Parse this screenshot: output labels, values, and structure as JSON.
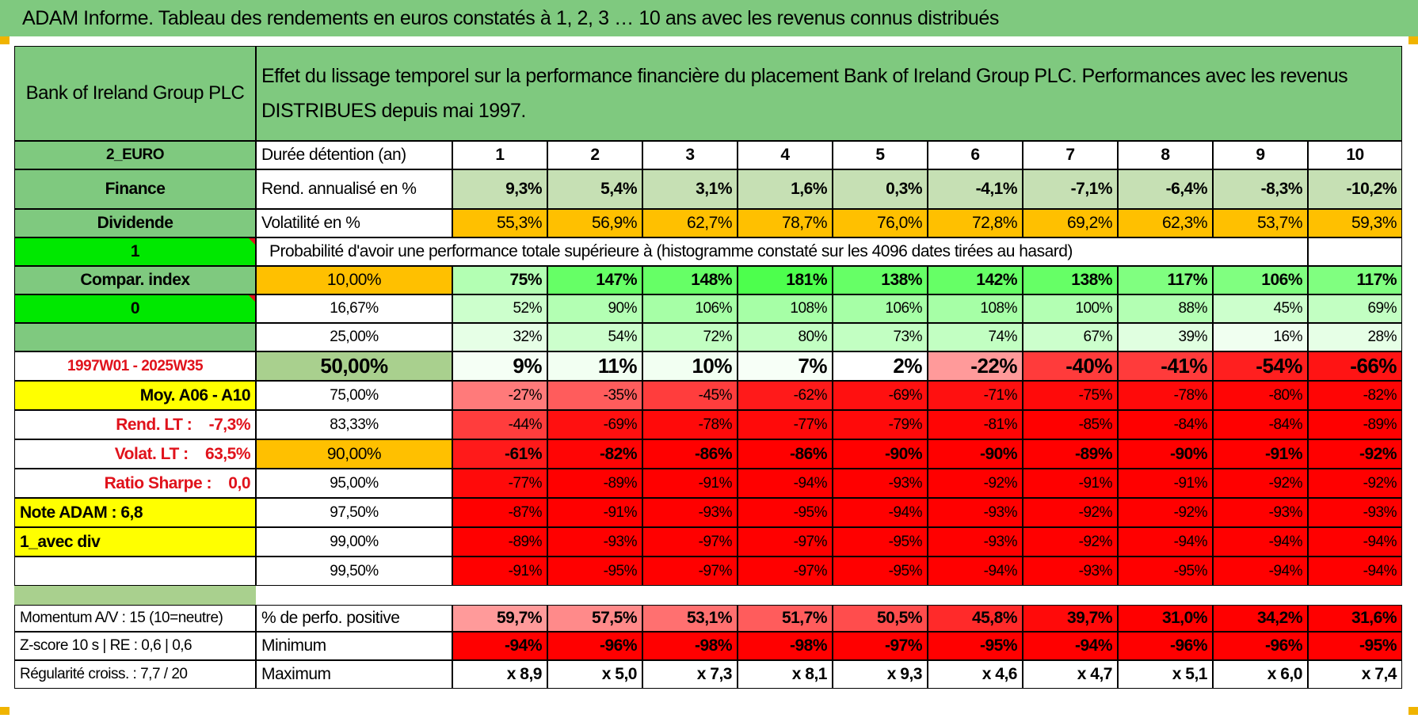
{
  "title": "ADAM Informe. Tableau des rendements en euros constatés à 1, 2, 3 … 10 ans avec les revenus connus distribués",
  "header": {
    "company": "Bank of Ireland Group PLC",
    "description": "Effet du lissage temporel sur la performance financière du placement Bank of Ireland Group PLC. Performances avec les revenus DISTRIBUES depuis mai 1997."
  },
  "left_panel": {
    "currency": "2_EURO",
    "sector": "Finance",
    "type": "Dividende",
    "value_1": "1",
    "compar_index": "Compar. index",
    "value_0": "0",
    "period": "1997W01 - 2025W35",
    "moy_label": "Moy. A06 - A10",
    "rend_lt": "Rend. LT :    -7,3%",
    "volat_lt": "Volat. LT :    63,5%",
    "ratio_sharpe": "Ratio Sharpe :    0,0",
    "note_adam": "Note ADAM : 6,8",
    "avec_div": "1_avec div"
  },
  "row_labels": {
    "duree": "Durée détention (an)",
    "rend": "Rend. annualisé en %",
    "volat": "Volatilité en %",
    "proba": "Probabilité d'avoir une performance totale supérieure à (histogramme constaté sur les 4096 dates tirées au hasard)",
    "positive": "% de perfo. positive",
    "minimum": "Minimum",
    "maximum": "Maximum"
  },
  "years": [
    "1",
    "2",
    "3",
    "4",
    "5",
    "6",
    "7",
    "8",
    "9",
    "10"
  ],
  "rend_values": [
    "9,3%",
    "5,4%",
    "3,1%",
    "1,6%",
    "0,3%",
    "-4,1%",
    "-7,1%",
    "-6,4%",
    "-8,3%",
    "-10,2%"
  ],
  "volat_values": [
    "55,3%",
    "56,9%",
    "62,7%",
    "78,7%",
    "76,0%",
    "72,8%",
    "69,2%",
    "62,3%",
    "53,7%",
    "59,3%"
  ],
  "prob_rows": [
    {
      "p": "10,00%",
      "v": [
        "75%",
        "147%",
        "148%",
        "181%",
        "138%",
        "142%",
        "138%",
        "117%",
        "106%",
        "117%"
      ],
      "bg": [
        "#b3ffb3",
        "#66ff66",
        "#66ff66",
        "#4dff4d",
        "#66ff66",
        "#66ff66",
        "#66ff66",
        "#80ff80",
        "#80ff80",
        "#80ff80"
      ]
    },
    {
      "p": "16,67%",
      "v": [
        "52%",
        "90%",
        "106%",
        "108%",
        "106%",
        "108%",
        "100%",
        "88%",
        "45%",
        "69%"
      ],
      "bg": [
        "#ccffcc",
        "#b3ffb3",
        "#a6ffa6",
        "#a6ffa6",
        "#a6ffa6",
        "#a6ffa6",
        "#b3ffb3",
        "#b3ffb3",
        "#ccffcc",
        "#c2ffc2"
      ]
    },
    {
      "p": "25,00%",
      "v": [
        "32%",
        "54%",
        "72%",
        "80%",
        "73%",
        "74%",
        "67%",
        "39%",
        "16%",
        "28%"
      ],
      "bg": [
        "#e6ffe6",
        "#ccffcc",
        "#c2ffc2",
        "#c2ffc2",
        "#c2ffc2",
        "#c2ffc2",
        "#ccffcc",
        "#e0ffe0",
        "#f0fff0",
        "#e6ffe6"
      ]
    },
    {
      "p": "50,00%",
      "v": [
        "9%",
        "11%",
        "10%",
        "7%",
        "2%",
        "-22%",
        "-40%",
        "-41%",
        "-54%",
        "-66%"
      ],
      "bg": [
        "#f5fff5",
        "#f2fff2",
        "#f2fff2",
        "#f7fff7",
        "#ffffff",
        "#ff9a9a",
        "#ff3b3b",
        "#ff3b3b",
        "#ff1f1f",
        "#ff1414"
      ]
    },
    {
      "p": "75,00%",
      "v": [
        "-27%",
        "-35%",
        "-45%",
        "-62%",
        "-69%",
        "-71%",
        "-75%",
        "-78%",
        "-80%",
        "-82%"
      ],
      "bg": [
        "#ff7a7a",
        "#ff5c5c",
        "#ff3d3d",
        "#ff1a1a",
        "#ff1010",
        "#ff1010",
        "#ff0a0a",
        "#ff0a0a",
        "#ff0505",
        "#ff0505"
      ]
    },
    {
      "p": "83,33%",
      "v": [
        "-44%",
        "-69%",
        "-78%",
        "-77%",
        "-79%",
        "-81%",
        "-85%",
        "-84%",
        "-84%",
        "-89%"
      ],
      "bg": [
        "#ff3d3d",
        "#ff1010",
        "#ff0a0a",
        "#ff0a0a",
        "#ff0a0a",
        "#ff0505",
        "#ff0000",
        "#ff0000",
        "#ff0000",
        "#ff0000"
      ]
    },
    {
      "p": "90,00%",
      "v": [
        "-61%",
        "-82%",
        "-86%",
        "-86%",
        "-90%",
        "-90%",
        "-89%",
        "-90%",
        "-91%",
        "-92%"
      ],
      "bg": [
        "#ff1a1a",
        "#ff0505",
        "#ff0000",
        "#ff0000",
        "#ff0000",
        "#ff0000",
        "#ff0000",
        "#ff0000",
        "#ff0000",
        "#ff0000"
      ]
    },
    {
      "p": "95,00%",
      "v": [
        "-77%",
        "-89%",
        "-91%",
        "-94%",
        "-93%",
        "-92%",
        "-91%",
        "-91%",
        "-92%",
        "-92%"
      ],
      "bg": [
        "#ff0a0a",
        "#ff0000",
        "#ff0000",
        "#ff0000",
        "#ff0000",
        "#ff0000",
        "#ff0000",
        "#ff0000",
        "#ff0000",
        "#ff0000"
      ]
    },
    {
      "p": "97,50%",
      "v": [
        "-87%",
        "-91%",
        "-93%",
        "-95%",
        "-94%",
        "-93%",
        "-92%",
        "-92%",
        "-93%",
        "-93%"
      ],
      "bg": [
        "#ff0000",
        "#ff0000",
        "#ff0000",
        "#ff0000",
        "#ff0000",
        "#ff0000",
        "#ff0000",
        "#ff0000",
        "#ff0000",
        "#ff0000"
      ]
    },
    {
      "p": "99,00%",
      "v": [
        "-89%",
        "-93%",
        "-97%",
        "-97%",
        "-95%",
        "-93%",
        "-92%",
        "-94%",
        "-94%",
        "-94%"
      ],
      "bg": [
        "#ff0000",
        "#ff0000",
        "#ff0000",
        "#ff0000",
        "#ff0000",
        "#ff0000",
        "#ff0000",
        "#ff0000",
        "#ff0000",
        "#ff0000"
      ]
    },
    {
      "p": "99,50%",
      "v": [
        "-91%",
        "-95%",
        "-97%",
        "-97%",
        "-95%",
        "-94%",
        "-93%",
        "-95%",
        "-94%",
        "-94%"
      ],
      "bg": [
        "#ff0000",
        "#ff0000",
        "#ff0000",
        "#ff0000",
        "#ff0000",
        "#ff0000",
        "#ff0000",
        "#ff0000",
        "#ff0000",
        "#ff0000"
      ]
    }
  ],
  "stats": {
    "momentum": "Momentum A/V : 15 (10=neutre)",
    "zscore": "Z-score 10 s | RE : 0,6 | 0,6",
    "regularite": "Régularité croiss. : 7,7 / 20",
    "positive_values": [
      "59,7%",
      "57,5%",
      "53,1%",
      "51,7%",
      "50,5%",
      "45,8%",
      "39,7%",
      "31,0%",
      "34,2%",
      "31,6%"
    ],
    "positive_bg": [
      "#ff9a9a",
      "#ff8a8a",
      "#ff7070",
      "#ff5c5c",
      "#ff4d4d",
      "#ff2a2a",
      "#ff0a0a",
      "#ff0000",
      "#ff0000",
      "#ff0000"
    ],
    "minimum_values": [
      "-94%",
      "-96%",
      "-98%",
      "-98%",
      "-97%",
      "-95%",
      "-94%",
      "-96%",
      "-96%",
      "-95%"
    ],
    "maximum_values": [
      "x 8,9",
      "x 5,0",
      "x 7,3",
      "x 8,1",
      "x 9,3",
      "x 4,6",
      "x 4,7",
      "x 5,1",
      "x 6,0",
      "x 7,4"
    ]
  },
  "colors": {
    "header_green": "#7fc97f",
    "rend_green": "#c6e0b4",
    "orange": "#ffc000",
    "bright_green": "#00e800",
    "yellow": "#ffff00",
    "red": "#ff0000",
    "median_green": "#a9d08e"
  }
}
